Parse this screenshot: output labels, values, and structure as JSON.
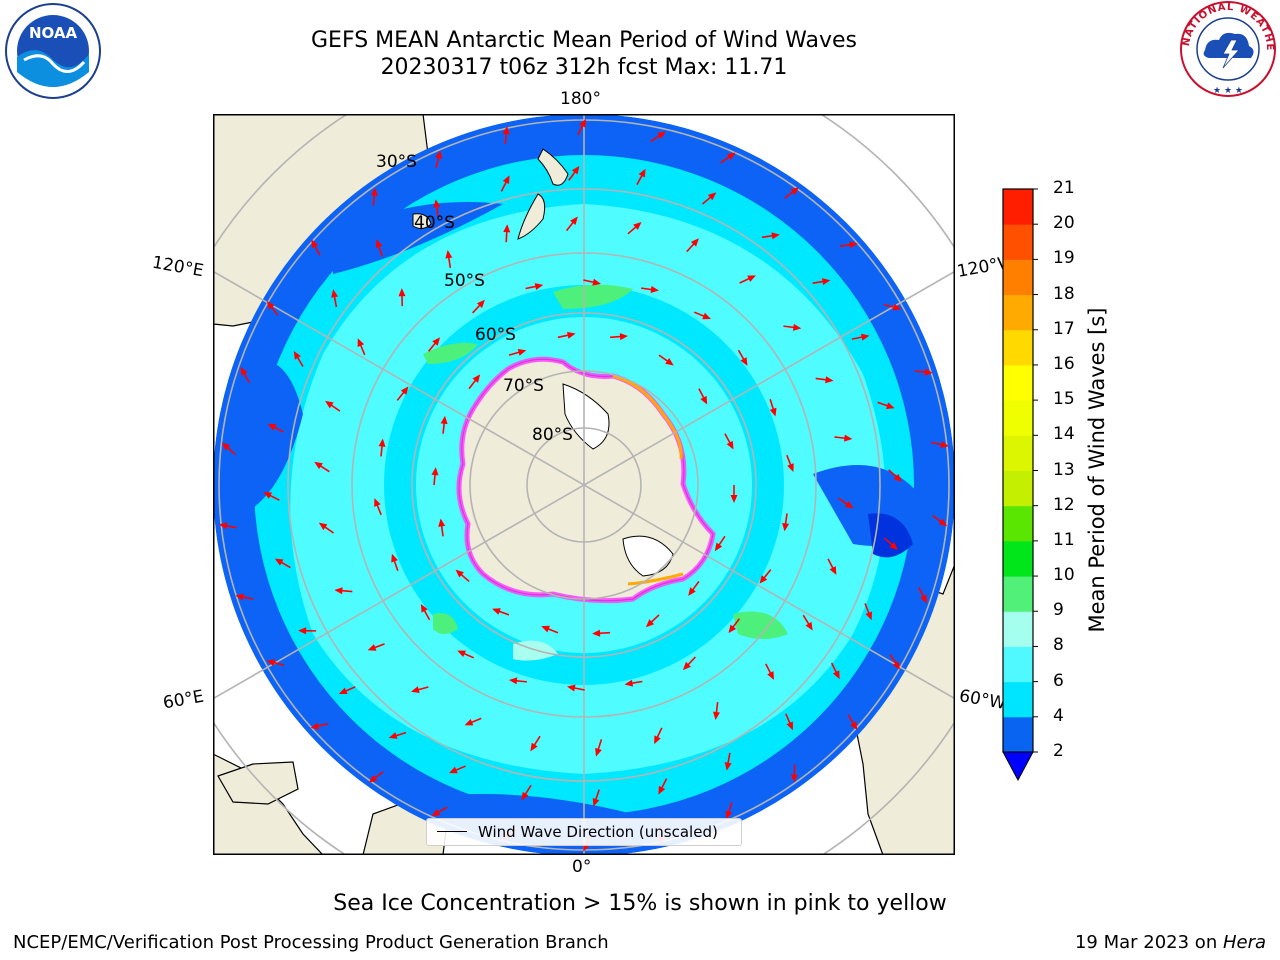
{
  "title": {
    "line1": "GEFS MEAN Antarctic Mean Period of Wind Waves",
    "line2": "20230317 t06z 312h fcst   Max: 11.71"
  },
  "logos": {
    "left_text": "NOAA",
    "right_text": "NATIONAL WEATHER SERVICE"
  },
  "map": {
    "projection": "south-polar-stereographic",
    "longitude_labels": {
      "top": "180°",
      "bottom": "0°",
      "upper_left": "120°E",
      "upper_right": "120°W",
      "lower_left": "60°E",
      "lower_right": "60°W"
    },
    "latitude_labels": [
      "30°S",
      "40°S",
      "50°S",
      "60°S",
      "70°S",
      "80°S"
    ],
    "land_color": "#efecda",
    "ocean_colors": {
      "2-4": "#0c63f5",
      "4-6": "#00e8ff",
      "6-8": "#4ffcff",
      "8-9": "#a8fff0",
      "9-10": "#4cf07a"
    },
    "arrow_color": "#ff0000"
  },
  "legend": {
    "label": "Wind Wave Direction (unscaled)"
  },
  "colorbar": {
    "label": "Mean Period of Wind Waves [s]",
    "ticks": [
      "2",
      "4",
      "6",
      "8",
      "9",
      "10",
      "11",
      "12",
      "13",
      "14",
      "15",
      "16",
      "17",
      "18",
      "19",
      "20",
      "21"
    ],
    "colors": [
      "#0a64f2",
      "#00e5ff",
      "#50f8ff",
      "#a4ffee",
      "#50f079",
      "#00e61a",
      "#5ae600",
      "#c4f000",
      "#dcf500",
      "#f0ff00",
      "#ffff00",
      "#ffd900",
      "#ffaa00",
      "#ff8000",
      "#ff5000",
      "#ff1e00"
    ],
    "under_color": "#0000ff"
  },
  "notes": {
    "ice": "Sea Ice Concentration > 15% is shown in pink to yellow"
  },
  "footer": {
    "left": "NCEP/EMC/Verification Post Processing Product Generation Branch",
    "date": "19 Mar 2023 on ",
    "machine": "Hera"
  }
}
